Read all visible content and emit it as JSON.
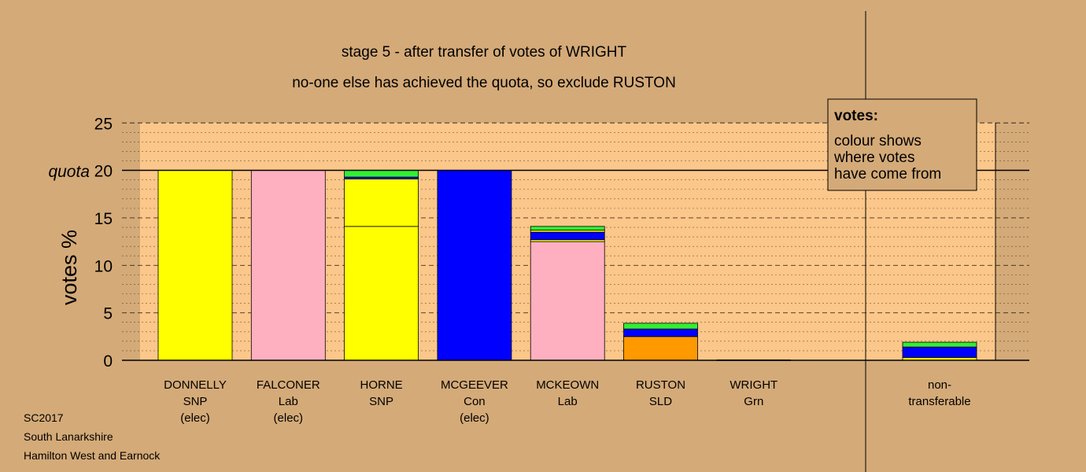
{
  "title_line1": "stage 5 - after transfer of votes of WRIGHT",
  "title_line2": "no-one else has achieved the quota, so exclude RUSTON",
  "footer": {
    "line1": "SC2017",
    "line2": "South Lanarkshire",
    "line3": "Hamilton West and Earnock"
  },
  "legend": {
    "heading": "votes:",
    "line1": "colour shows",
    "line2": "where votes",
    "line3": "have come from"
  },
  "colors": {
    "background": "#d4aa78",
    "plot_area": "#fcc78a",
    "snp": "#ffff00",
    "lab": "#ffb0c0",
    "con": "#0000ff",
    "sld": "#ff9900",
    "grn": "#33ee33"
  },
  "chart_data": {
    "type": "bar",
    "stacked": true,
    "ylabel": "votes %",
    "ylim": [
      0,
      25
    ],
    "yticks": [
      "0",
      "5",
      "10",
      "15",
      "20",
      "25"
    ],
    "quota_label": "quota",
    "quota": 20,
    "grid": true,
    "candidates": [
      {
        "name": "DONNELLY",
        "party": "SNP",
        "status": "(elec)",
        "segments": [
          {
            "color": "#ffff00",
            "value": 20
          }
        ]
      },
      {
        "name": "FALCONER",
        "party": "Lab",
        "status": "(elec)",
        "segments": [
          {
            "color": "#ffb0c0",
            "value": 20
          }
        ]
      },
      {
        "name": "HORNE",
        "party": "SNP",
        "status": "",
        "segments": [
          {
            "color": "#ffff00",
            "value": 14.1
          },
          {
            "color": "#ffff00",
            "value": 5.0
          },
          {
            "color": "#0000ff",
            "value": 0.2
          },
          {
            "color": "#33ee33",
            "value": 0.7
          }
        ]
      },
      {
        "name": "MCGEEVER",
        "party": "Con",
        "status": "(elec)",
        "segments": [
          {
            "color": "#0000ff",
            "value": 20
          }
        ]
      },
      {
        "name": "MCKEOWN",
        "party": "Lab",
        "status": "",
        "segments": [
          {
            "color": "#ffb0c0",
            "value": 12.5
          },
          {
            "color": "#ffff00",
            "value": 0.2
          },
          {
            "color": "#0000ff",
            "value": 0.8
          },
          {
            "color": "#ffff00",
            "value": 0.2
          },
          {
            "color": "#33ee33",
            "value": 0.4
          }
        ]
      },
      {
        "name": "RUSTON",
        "party": "SLD",
        "status": "",
        "segments": [
          {
            "color": "#ff9900",
            "value": 2.5
          },
          {
            "color": "#0000ff",
            "value": 0.8
          },
          {
            "color": "#33ee33",
            "value": 0.6
          }
        ]
      },
      {
        "name": "WRIGHT",
        "party": "Grn",
        "status": "",
        "segments": []
      }
    ],
    "nontransferable": {
      "label_line1": "non-",
      "label_line2": "transferable",
      "segments": [
        {
          "color": "#ffff00",
          "value": 0.3
        },
        {
          "color": "#0000ff",
          "value": 1.1
        },
        {
          "color": "#33ee33",
          "value": 0.5
        }
      ]
    }
  }
}
